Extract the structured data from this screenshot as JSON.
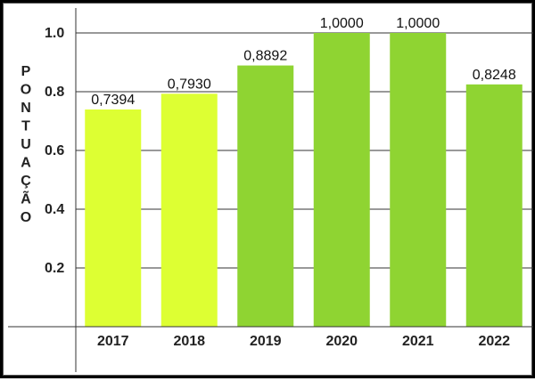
{
  "chart_data": {
    "type": "bar",
    "ylabel": "PONTUAÇÃO",
    "xlabel": "",
    "categories": [
      "2017",
      "2018",
      "2019",
      "2020",
      "2021",
      "2022"
    ],
    "values": [
      0.7394,
      0.793,
      0.8892,
      1.0,
      1.0,
      0.8248
    ],
    "value_labels": [
      "0,7394",
      "0,7930",
      "0,8892",
      "1,0000",
      "1,0000",
      "0,8248"
    ],
    "bar_colors": [
      "#ddff33",
      "#ddff33",
      "#8fd432",
      "#8fd432",
      "#8fd432",
      "#8fd432"
    ],
    "ylim": [
      0,
      1.1
    ],
    "yticks": [
      0.2,
      0.4,
      0.6,
      0.8,
      1.0
    ],
    "ytick_labels": [
      "0.2",
      "0.4",
      "0.6",
      "0.8",
      "1.0"
    ],
    "grid": true,
    "legend": "none"
  }
}
